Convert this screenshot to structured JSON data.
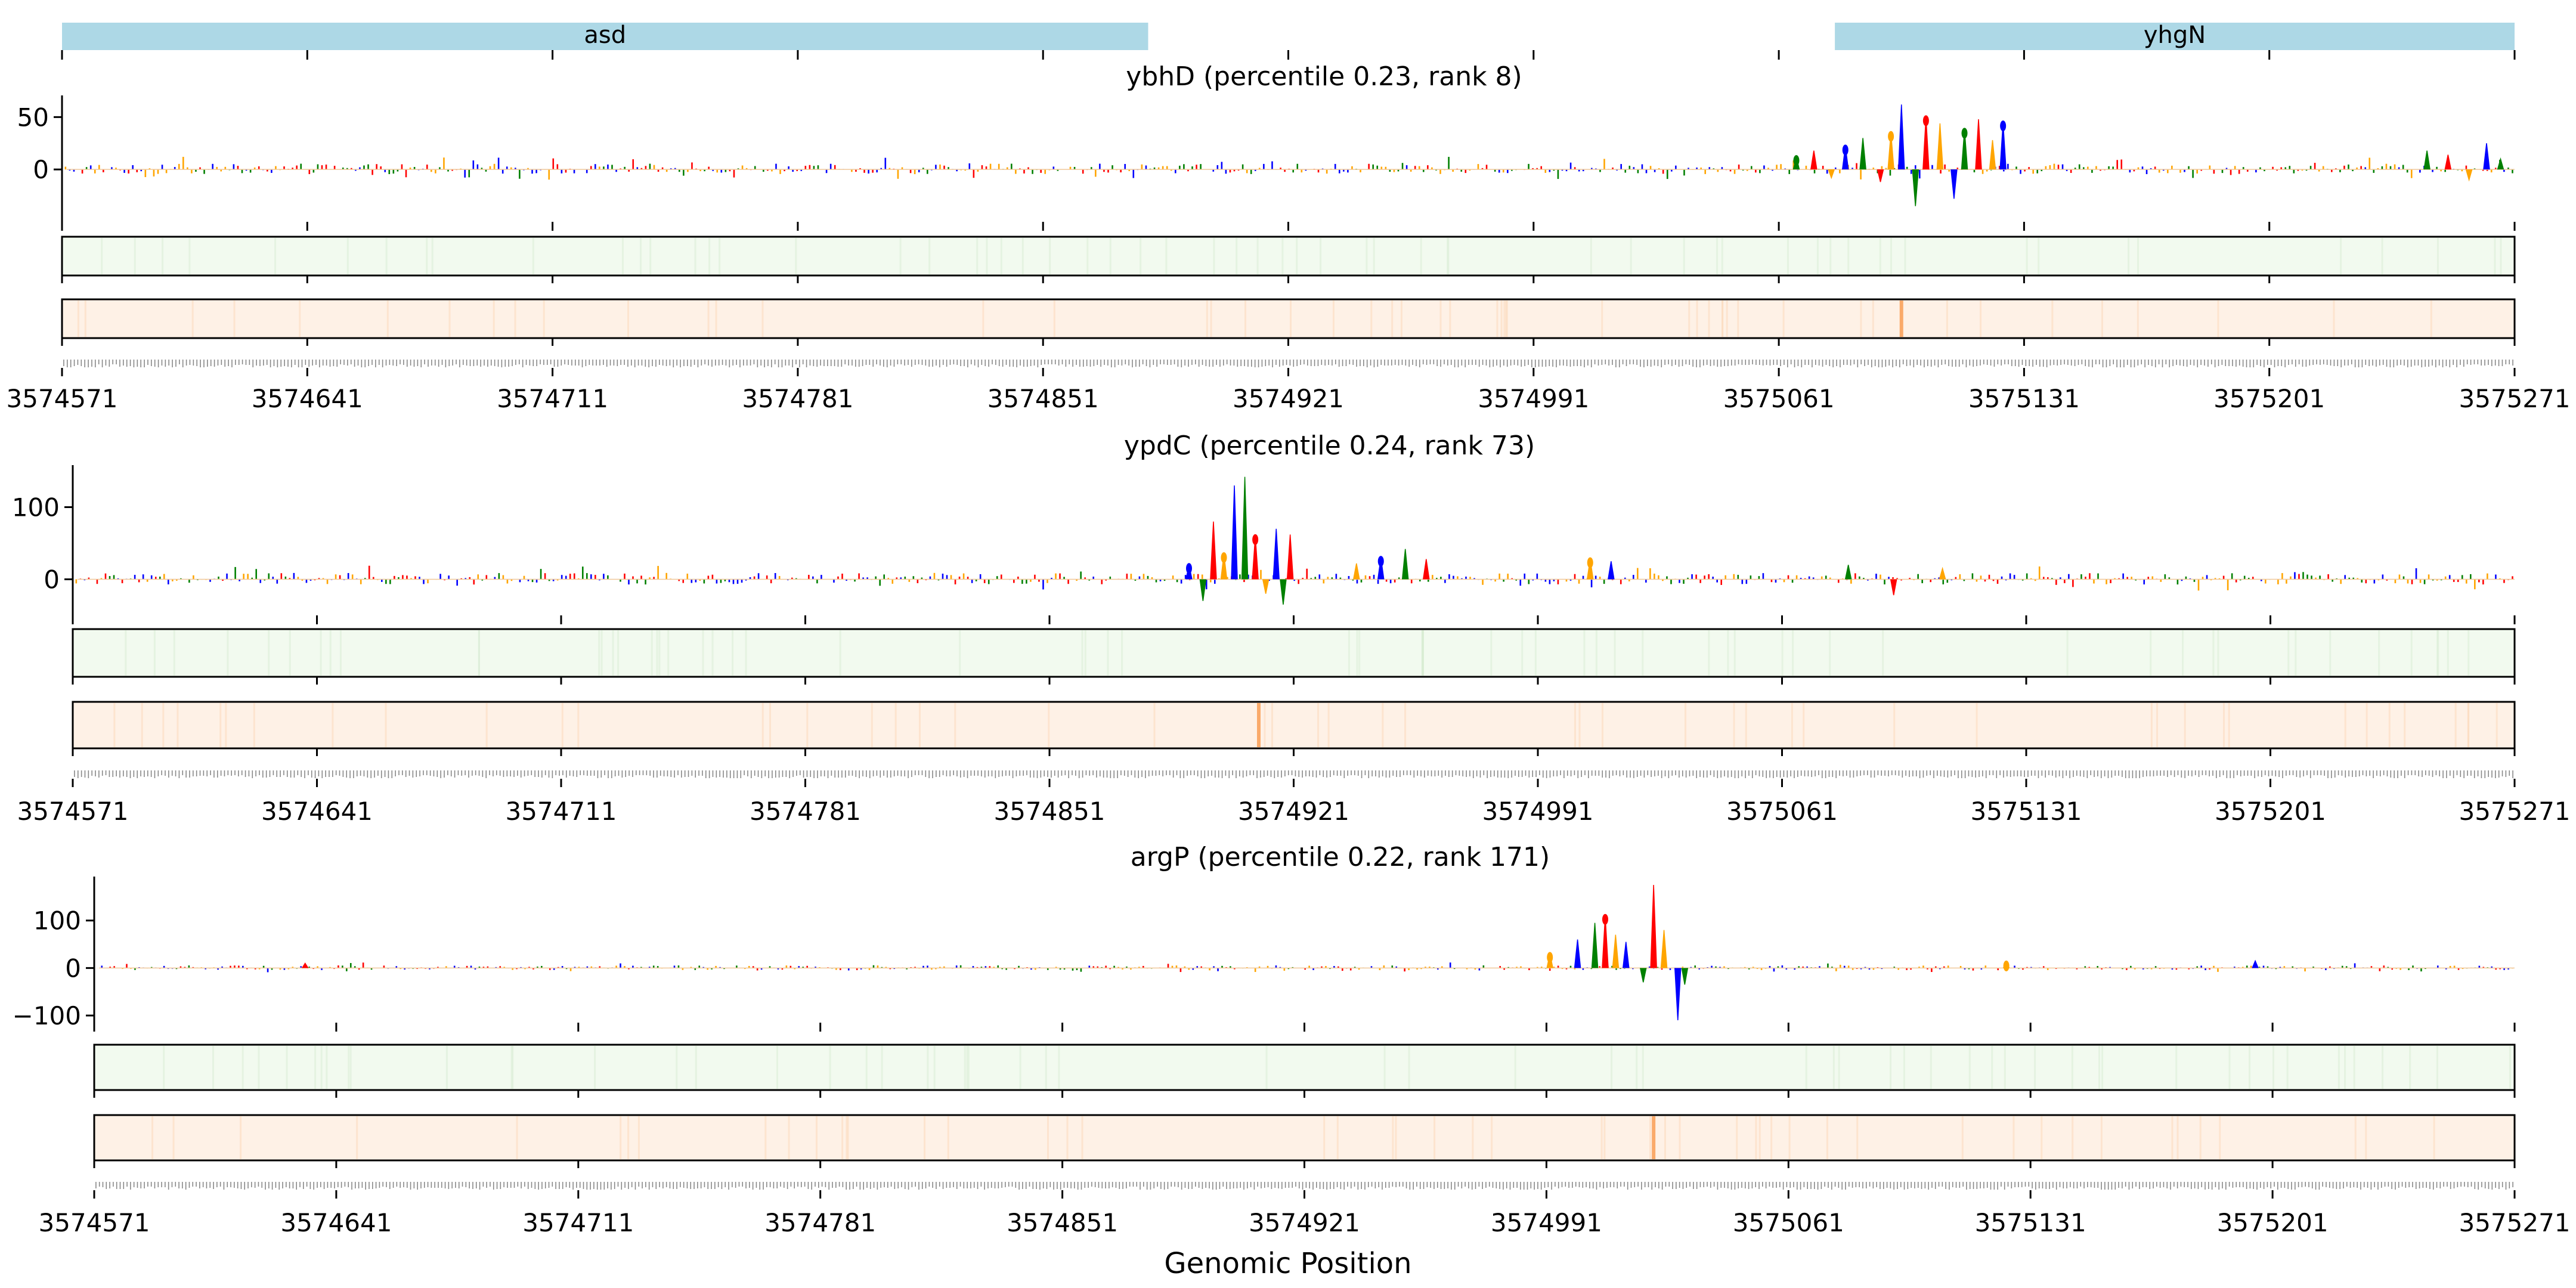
{
  "figure": {
    "xlabel": "Genomic Position"
  },
  "genes_track": {
    "genes": [
      {
        "name": "asd",
        "start": 3574571,
        "end": 3574881,
        "color": "#add8e6"
      },
      {
        "name": "yhgN",
        "start": 3575077,
        "end": 3575271,
        "color": "#add8e6"
      }
    ],
    "xlim": [
      3574571,
      3575271
    ]
  },
  "colors": {
    "A": "#008000",
    "C": "#0000ff",
    "G": "#ffa500",
    "T": "#ff0000",
    "green_track": "#f2faef",
    "orange_track": "#fef1e6",
    "orange_peak": "#f9a25c"
  },
  "chart_data": [
    {
      "type": "line",
      "panel": "ybhD",
      "title": "ybhD (percentile 0.23, rank 8)",
      "xlabel": "",
      "ylabel": "",
      "xlim": [
        3574571,
        3575271
      ],
      "ylim": [
        -50,
        65
      ],
      "yticks": [
        0,
        50
      ],
      "xticks": [
        3574571,
        3574641,
        3574711,
        3574781,
        3574851,
        3574921,
        3574991,
        3575061,
        3575131,
        3575201,
        3575271
      ],
      "grid": false,
      "legend": "none",
      "baseline_amplitude": 5,
      "peaks": [
        {
          "x": 3575066,
          "y": 12
        },
        {
          "x": 3575071,
          "y": 18
        },
        {
          "x": 3575076,
          "y": -8
        },
        {
          "x": 3575080,
          "y": 22
        },
        {
          "x": 3575085,
          "y": 30
        },
        {
          "x": 3575090,
          "y": -12
        },
        {
          "x": 3575093,
          "y": 35
        },
        {
          "x": 3575096,
          "y": 62
        },
        {
          "x": 3575100,
          "y": -35
        },
        {
          "x": 3575103,
          "y": 50
        },
        {
          "x": 3575107,
          "y": 44
        },
        {
          "x": 3575111,
          "y": -28
        },
        {
          "x": 3575114,
          "y": 38
        },
        {
          "x": 3575118,
          "y": 48
        },
        {
          "x": 3575122,
          "y": 28
        },
        {
          "x": 3575125,
          "y": 45
        },
        {
          "x": 3575246,
          "y": 18
        },
        {
          "x": 3575252,
          "y": 14
        },
        {
          "x": 3575258,
          "y": -10
        },
        {
          "x": 3575263,
          "y": 25
        },
        {
          "x": 3575267,
          "y": 10
        }
      ],
      "green_track_peaks": [],
      "orange_track_peaks": [
        {
          "x": 3575096,
          "intensity": 0.9
        }
      ]
    },
    {
      "type": "line",
      "panel": "ypdC",
      "title": "ypdC (percentile 0.24, rank 73)",
      "xlabel": "",
      "ylabel": "",
      "xlim": [
        3574571,
        3575271
      ],
      "ylim": [
        -50,
        150
      ],
      "yticks": [
        0,
        100
      ],
      "xticks": [
        3574571,
        3574641,
        3574711,
        3574781,
        3574851,
        3574921,
        3574991,
        3575061,
        3575131,
        3575201,
        3575271
      ],
      "grid": false,
      "legend": "none",
      "baseline_amplitude": 8,
      "peaks": [
        {
          "x": 3574891,
          "y": 20
        },
        {
          "x": 3574895,
          "y": -30
        },
        {
          "x": 3574898,
          "y": 80
        },
        {
          "x": 3574901,
          "y": 35
        },
        {
          "x": 3574904,
          "y": 130
        },
        {
          "x": 3574907,
          "y": 142
        },
        {
          "x": 3574910,
          "y": 60
        },
        {
          "x": 3574913,
          "y": -20
        },
        {
          "x": 3574916,
          "y": 70
        },
        {
          "x": 3574918,
          "y": -35
        },
        {
          "x": 3574920,
          "y": 62
        },
        {
          "x": 3574939,
          "y": 22
        },
        {
          "x": 3574946,
          "y": 30
        },
        {
          "x": 3574953,
          "y": 42
        },
        {
          "x": 3574959,
          "y": 28
        },
        {
          "x": 3575006,
          "y": 28
        },
        {
          "x": 3575012,
          "y": 25
        },
        {
          "x": 3575080,
          "y": 20
        },
        {
          "x": 3575093,
          "y": -22
        },
        {
          "x": 3575107,
          "y": 15
        }
      ],
      "green_track_peaks": [
        {
          "x": 3574958,
          "intensity": 0.3
        }
      ],
      "orange_track_peaks": [
        {
          "x": 3574911,
          "intensity": 0.9
        }
      ]
    },
    {
      "type": "line",
      "panel": "argP",
      "title": "argP (percentile 0.22, rank 171)",
      "xlabel": "",
      "ylabel": "",
      "xlim": [
        3574571,
        3575271
      ],
      "ylim": [
        -115,
        180
      ],
      "yticks": [
        -100,
        0,
        100
      ],
      "xticks": [
        3574571,
        3574641,
        3574711,
        3574781,
        3574851,
        3574921,
        3574991,
        3575061,
        3575131,
        3575201,
        3575271
      ],
      "grid": false,
      "legend": "none",
      "baseline_amplitude": 5,
      "peaks": [
        {
          "x": 3574992,
          "y": 30
        },
        {
          "x": 3575000,
          "y": 60
        },
        {
          "x": 3575005,
          "y": 95
        },
        {
          "x": 3575008,
          "y": 110
        },
        {
          "x": 3575011,
          "y": 70
        },
        {
          "x": 3575014,
          "y": 55
        },
        {
          "x": 3575019,
          "y": -30
        },
        {
          "x": 3575022,
          "y": 175
        },
        {
          "x": 3575025,
          "y": 80
        },
        {
          "x": 3575029,
          "y": -110
        },
        {
          "x": 3575031,
          "y": -35
        },
        {
          "x": 3574632,
          "y": 10
        },
        {
          "x": 3575124,
          "y": 12
        },
        {
          "x": 3575196,
          "y": 15
        }
      ],
      "green_track_peaks": [],
      "orange_track_peaks": [
        {
          "x": 3575022,
          "intensity": 0.9
        }
      ]
    }
  ]
}
